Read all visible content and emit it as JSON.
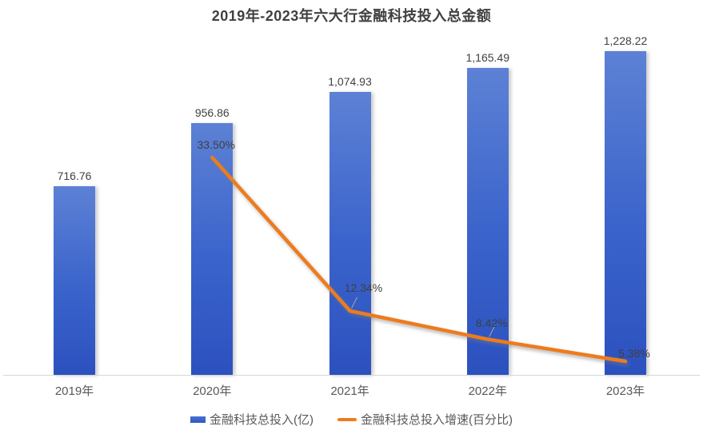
{
  "chart_data": {
    "type": "bar",
    "title": "2019年-2023年六大行金融科技投入总金额",
    "categories": [
      "2019年",
      "2020年",
      "2021年",
      "2022年",
      "2023年"
    ],
    "series": [
      {
        "name": "金融科技总投入(亿)",
        "type": "bar",
        "values": [
          716.76,
          956.86,
          1074.93,
          1165.49,
          1228.22
        ],
        "value_labels": [
          "716.76",
          "956.86",
          "1,074.93",
          "1,165.49",
          "1,228.22"
        ],
        "color_top": "#5C81D5",
        "color_bottom": "#2C51BF"
      },
      {
        "name": "金融科技总投入增速(百分比)",
        "type": "line",
        "values": [
          null,
          33.5,
          12.34,
          8.42,
          5.38
        ],
        "value_labels": [
          "",
          "33.50%",
          "12.34%",
          "8.42%",
          "5.38%"
        ],
        "color": "#ED7C1F"
      }
    ],
    "ylim_bars": [
      0,
      1400
    ],
    "grid": false,
    "y_axis_visible": false,
    "legend_position": "bottom"
  },
  "legend": {
    "items": [
      {
        "label": "金融科技总投入(亿)",
        "swatch": "bar"
      },
      {
        "label": "金融科技总投入增速(百分比)",
        "swatch": "line"
      }
    ]
  }
}
